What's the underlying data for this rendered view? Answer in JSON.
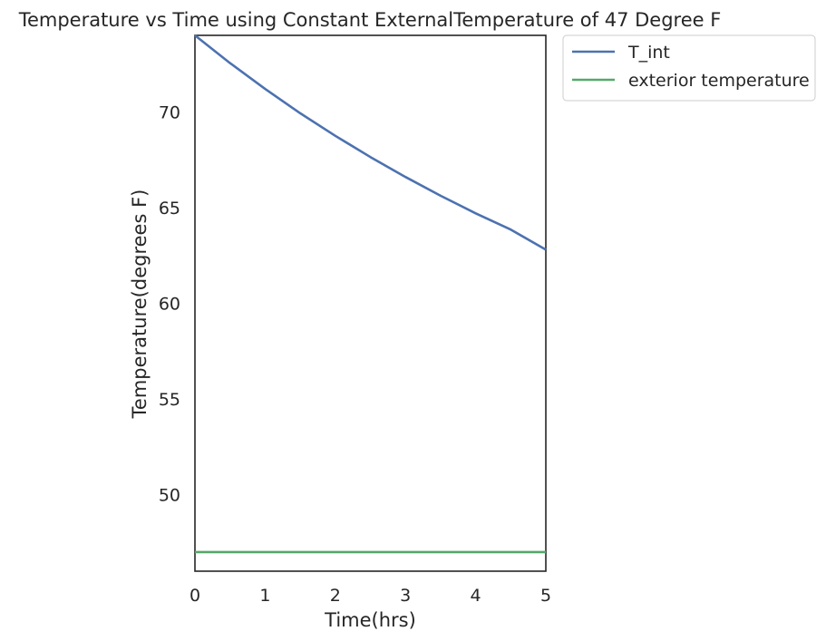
{
  "chart_data": {
    "type": "line",
    "title": "Temperature vs Time using Constant ExternalTemperature of 47 Degree F",
    "xlabel": "Time(hrs)",
    "ylabel": "Temperature(degrees F)",
    "xlim": [
      0,
      5
    ],
    "ylim": [
      46,
      74
    ],
    "xticks": [
      0,
      1,
      2,
      3,
      4,
      5
    ],
    "yticks": [
      50,
      55,
      60,
      65,
      70
    ],
    "grid": false,
    "legend_position": "outside-top-right",
    "series": [
      {
        "name": "T_int",
        "color": "#4c72b0",
        "x": [
          0,
          0.5,
          1,
          1.5,
          2,
          2.5,
          3,
          3.5,
          4,
          4.5,
          5
        ],
        "y": [
          74,
          72.55,
          71.2,
          69.93,
          68.75,
          67.64,
          66.6,
          65.62,
          64.7,
          63.85,
          62.8
        ]
      },
      {
        "name": "exterior temperature",
        "color": "#55a868",
        "x": [
          0,
          5
        ],
        "y": [
          47,
          47
        ]
      }
    ]
  }
}
